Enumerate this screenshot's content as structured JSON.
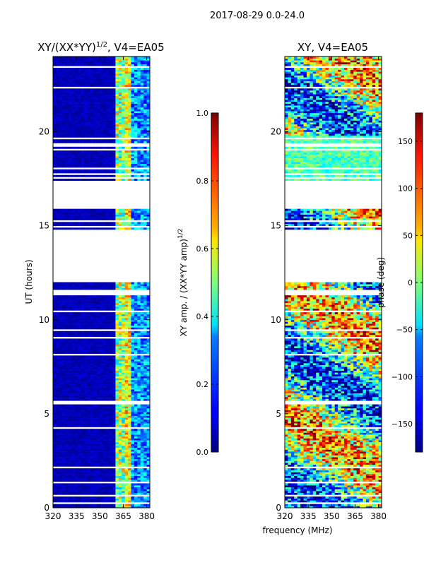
{
  "suptitle": "2017-08-29 0.0-24.0",
  "chart_data": [
    {
      "type": "heatmap",
      "title": "XY/(XX*YY)^{1/2}, V4=EA05",
      "xlabel": "",
      "ylabel": "UT (hours)",
      "xlim": [
        320,
        382
      ],
      "ylim": [
        0,
        24
      ],
      "xticks": [
        320,
        335,
        350,
        365,
        380
      ],
      "yticks": [
        0,
        5,
        10,
        15,
        20
      ],
      "colorbar": {
        "label": "XY amp. / (XX*YY amp)^{1/2}",
        "range": [
          0.0,
          1.0
        ],
        "ticks": [
          0.0,
          0.2,
          0.4,
          0.6,
          0.8,
          1.0
        ],
        "cmap": "jet"
      },
      "data_gaps_hours": [
        [
          11.9,
          14.7
        ],
        [
          15.9,
          17.3
        ]
      ]
    },
    {
      "type": "heatmap",
      "title": "XY, V4=EA05",
      "xlabel": "frequency (MHz)",
      "ylabel": "",
      "xlim": [
        320,
        382
      ],
      "ylim": [
        0,
        24
      ],
      "xticks": [
        320,
        335,
        350,
        365,
        380
      ],
      "yticks": [
        0,
        5,
        10,
        15,
        20
      ],
      "colorbar": {
        "label": "phase (deg)",
        "range": [
          -180,
          180
        ],
        "ticks": [
          -150,
          -100,
          -50,
          0,
          50,
          100,
          150
        ],
        "cmap": "jet"
      },
      "data_gaps_hours": [
        [
          11.9,
          14.7
        ],
        [
          15.9,
          17.3
        ]
      ]
    }
  ],
  "labels": {
    "left_title_main": "XY/(XX*YY)",
    "left_title_exp": "1/2",
    "left_title_tail": ", V4=EA05",
    "right_title": "XY, V4=EA05",
    "ylabel": "UT (hours)",
    "xlabel": "frequency (MHz)",
    "cb1_label_main": "XY amp. / (XX*YY amp)",
    "cb1_label_exp": "1/2",
    "cb2_label": "phase (deg)"
  },
  "colors": {
    "axis": "#000000",
    "background": "#ffffff",
    "jet_low": "#00007f",
    "jet_high": "#7f0000"
  }
}
